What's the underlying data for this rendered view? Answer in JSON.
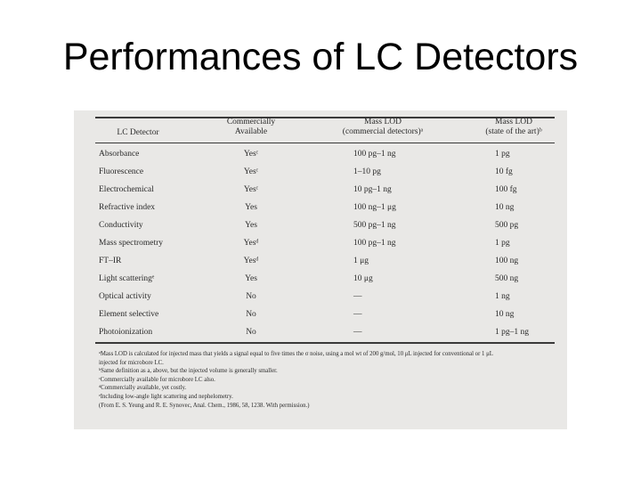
{
  "slide": {
    "title": "Performances of LC Detectors"
  },
  "table": {
    "headers": {
      "detector": "LC Detector",
      "commercial_line1": "Commercially",
      "commercial_line2": "Available",
      "mass_lod_line1": "Mass LOD",
      "mass_lod_line2": "(commercial detectors)ᵃ",
      "state_line1": "Mass LOD",
      "state_line2": "(state of the art)ᵇ"
    },
    "rows": [
      {
        "detector": "Absorbance",
        "available": "Yesᶜ",
        "lod_commercial": "100 pg–1 ng",
        "lod_state": "1 pg"
      },
      {
        "detector": "Fluorescence",
        "available": "Yesᶜ",
        "lod_commercial": "1–10 pg",
        "lod_state": "10 fg"
      },
      {
        "detector": "Electrochemical",
        "available": "Yesᶜ",
        "lod_commercial": "10 pg–1 ng",
        "lod_state": "100 fg"
      },
      {
        "detector": "Refractive index",
        "available": "Yes",
        "lod_commercial": "100 ng–1 μg",
        "lod_state": "10 ng"
      },
      {
        "detector": "Conductivity",
        "available": "Yes",
        "lod_commercial": "500 pg–1 ng",
        "lod_state": "500 pg"
      },
      {
        "detector": "Mass spectrometry",
        "available": "Yesᵈ",
        "lod_commercial": "100 pg–1 ng",
        "lod_state": "1 pg"
      },
      {
        "detector": "FT–IR",
        "available": "Yesᵈ",
        "lod_commercial": "1 μg",
        "lod_state": "100 ng"
      },
      {
        "detector": "Light scatteringᵉ",
        "available": "Yes",
        "lod_commercial": "10 μg",
        "lod_state": "500 ng"
      },
      {
        "detector": "Optical activity",
        "available": "No",
        "lod_commercial": "—",
        "lod_state": "1 ng"
      },
      {
        "detector": "Element selective",
        "available": "No",
        "lod_commercial": "—",
        "lod_state": "10 ng"
      },
      {
        "detector": "Photoionization",
        "available": "No",
        "lod_commercial": "—",
        "lod_state": "1 pg–1 ng"
      }
    ],
    "footnotes": [
      "ᵃMass LOD is calculated for injected mass that yields a signal equal to five times the σ noise, using a mol wt of 200 g/mol, 10 μL injected for conventional or 1 μL",
      "injected for microbore LC.",
      "ᵇSame definition as a, above, but the injected volume is generally smaller.",
      "ᶜCommercially available for microbore LC also.",
      "ᵈCommercially available, yet costly.",
      "ᵉIncluding low-angle light scattering and nephelometry.",
      "(From E. S. Yeung and R. E. Synovec, Anal. Chem., 1986, 58, 1238. With permission.)"
    ]
  }
}
